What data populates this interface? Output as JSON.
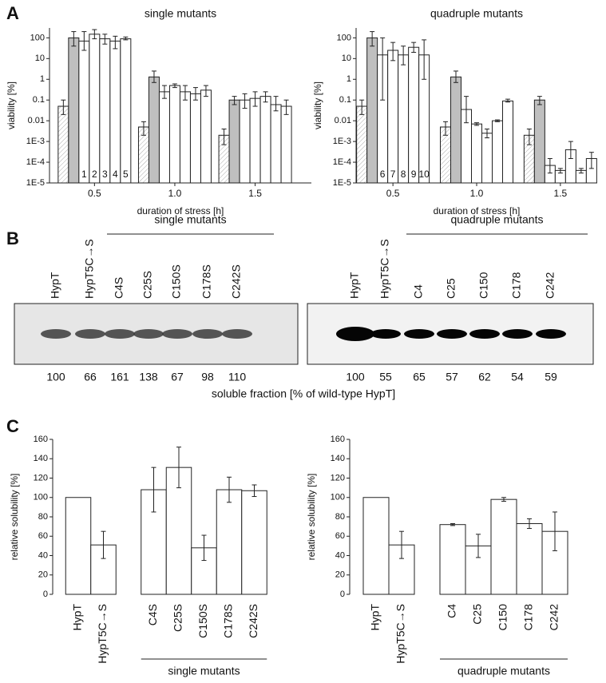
{
  "panel_labels": [
    "A",
    "B",
    "C"
  ],
  "chart_data": [
    {
      "type": "bar",
      "title": "single mutants",
      "x_label": "duration of stress [h]",
      "y_label": "viability [%]",
      "log_scale": true,
      "x": [
        0.5,
        1,
        1.5
      ],
      "xlim": [
        0.22,
        1.85
      ],
      "xticks": [
        0.5,
        {
          "value": 1,
          "label": "1.0"
        },
        1.5
      ],
      "ylim": [
        1e-05,
        300
      ],
      "yticks": [
        {
          "value": 1e-05,
          "label": "1E-5"
        },
        {
          "value": 0.0001,
          "label": "1E-4"
        },
        {
          "value": 0.001,
          "label": "1E-3"
        },
        0.01,
        0.1,
        1,
        10,
        100
      ],
      "series": [
        {
          "color": "#ffffff",
          "hatch": true,
          "values": [
            0.05,
            0.005,
            0.002
          ],
          "error_ranges": [
            [
              0.02,
              0.1
            ],
            [
              0.002,
              0.009
            ],
            [
              0.0007,
              0.004
            ]
          ]
        },
        {
          "color": "#bfbfbf",
          "values": [
            100,
            1.3,
            0.1
          ],
          "error_ranges": [
            [
              40,
              200
            ],
            [
              0.7,
              2.5
            ],
            [
              0.06,
              0.15
            ]
          ]
        },
        {
          "name": "1",
          "color": "#ffffff",
          "values": [
            70,
            0.25,
            0.1
          ],
          "error_ranges": [
            [
              25,
              200
            ],
            [
              0.12,
              0.5
            ],
            [
              0.04,
              0.2
            ]
          ]
        },
        {
          "name": "2",
          "color": "#ffffff",
          "values": [
            150,
            0.5,
            0.12
          ],
          "error_ranges": [
            [
              90,
              250
            ],
            [
              0.4,
              0.6
            ],
            [
              0.05,
              0.25
            ]
          ]
        },
        {
          "name": "3",
          "color": "#ffffff",
          "values": [
            90,
            0.25,
            0.15
          ],
          "error_ranges": [
            [
              50,
              150
            ],
            [
              0.1,
              0.5
            ],
            [
              0.08,
              0.25
            ]
          ]
        },
        {
          "name": "4",
          "color": "#ffffff",
          "values": [
            70,
            0.2,
            0.06
          ],
          "error_ranges": [
            [
              30,
              120
            ],
            [
              0.1,
              0.4
            ],
            [
              0.03,
              0.15
            ]
          ]
        },
        {
          "name": "5",
          "color": "#ffffff",
          "values": [
            90,
            0.3,
            0.05
          ],
          "error_ranges": [
            [
              80,
              110
            ],
            [
              0.15,
              0.5
            ],
            [
              0.02,
              0.1
            ]
          ]
        }
      ]
    },
    {
      "type": "bar",
      "title": "quadruple mutants",
      "x_label": "duration of stress [h]",
      "y_label": "viability [%]",
      "log_scale": true,
      "x": [
        0.5,
        1,
        1.5
      ],
      "xlim": [
        0.28,
        1.72
      ],
      "xticks": [
        0.5,
        {
          "value": 1,
          "label": "1.0"
        },
        1.5
      ],
      "ylim": [
        1e-05,
        300
      ],
      "yticks": [
        {
          "value": 1e-05,
          "label": "1E-5"
        },
        {
          "value": 0.0001,
          "label": "1E-4"
        },
        {
          "value": 0.001,
          "label": "1E-3"
        },
        0.01,
        0.1,
        1,
        10,
        100
      ],
      "series": [
        {
          "color": "#ffffff",
          "hatch": true,
          "values": [
            0.05,
            0.005,
            0.002
          ],
          "error_ranges": [
            [
              0.02,
              0.1
            ],
            [
              0.002,
              0.009
            ],
            [
              0.0007,
              0.004
            ]
          ]
        },
        {
          "color": "#bfbfbf",
          "values": [
            100,
            1.3,
            0.1
          ],
          "error_ranges": [
            [
              40,
              200
            ],
            [
              0.7,
              2.5
            ],
            [
              0.06,
              0.15
            ]
          ]
        },
        {
          "name": "6",
          "color": "#ffffff",
          "values": [
            15,
            0.035,
            7e-05
          ],
          "error_ranges": [
            [
              0.1,
              100
            ],
            [
              0.008,
              0.15
            ],
            [
              3e-05,
              0.00015
            ]
          ]
        },
        {
          "name": "7",
          "color": "#ffffff",
          "values": [
            25,
            0.007,
            4e-05
          ],
          "error_ranges": [
            [
              8,
              60
            ],
            [
              0.006,
              0.008
            ],
            [
              3e-05,
              5e-05
            ]
          ]
        },
        {
          "name": "8",
          "color": "#ffffff",
          "values": [
            15,
            0.0025,
            0.0004
          ],
          "error_ranges": [
            [
              5,
              40
            ],
            [
              0.0015,
              0.004
            ],
            [
              0.00015,
              0.001
            ]
          ]
        },
        {
          "name": "9",
          "color": "#ffffff",
          "values": [
            35,
            0.01,
            4e-05
          ],
          "error_ranges": [
            [
              20,
              60
            ],
            [
              0.009,
              0.011
            ],
            [
              3e-05,
              5e-05
            ]
          ]
        },
        {
          "name": "10",
          "color": "#ffffff",
          "values": [
            15,
            0.09,
            0.00015
          ],
          "error_ranges": [
            [
              1,
              80
            ],
            [
              0.08,
              0.11
            ],
            [
              5e-05,
              0.0003
            ]
          ]
        }
      ]
    },
    {
      "type": "bar",
      "y_label": "relative solubility [%]",
      "color": "#ffffff",
      "categories": [
        "HypT",
        "HypT5C→S",
        null,
        "C4S",
        "C25S",
        "C150S",
        "C178S",
        "C242S"
      ],
      "values": [
        100,
        51,
        null,
        108,
        131,
        48,
        108,
        107
      ],
      "errors": [
        null,
        14,
        null,
        23,
        21,
        13,
        13,
        6
      ],
      "group_label": "single mutants",
      "ylim": [
        0,
        160
      ],
      "yticks": [
        0,
        20,
        40,
        60,
        80,
        100,
        120,
        140,
        160
      ]
    },
    {
      "type": "bar",
      "y_label": "relative solubility [%]",
      "color": "#ffffff",
      "categories": [
        "HypT",
        "HypT5C→S",
        null,
        "C4",
        "C25",
        "C150",
        "C178",
        "C242"
      ],
      "values": [
        100,
        51,
        null,
        72,
        50,
        98,
        73,
        65
      ],
      "errors": [
        null,
        14,
        null,
        1,
        12,
        2,
        5,
        20
      ],
      "group_label": "quadruple mutants",
      "ylim": [
        0,
        160
      ],
      "yticks": [
        0,
        20,
        40,
        60,
        80,
        100,
        120,
        140,
        160
      ]
    }
  ],
  "blots": [
    {
      "title": "single mutants",
      "lanes": [
        "HypT",
        "HypT5C→S",
        "C4S",
        "C25S",
        "C150S",
        "C178S",
        "C242S"
      ],
      "values": [
        100,
        66,
        161,
        138,
        67,
        98,
        110
      ]
    },
    {
      "title": "quadruple mutants",
      "lanes": [
        "HypT",
        "HypT5C→S",
        "C4",
        "C25",
        "C150",
        "C178",
        "C242"
      ],
      "values": [
        100,
        55,
        65,
        57,
        62,
        54,
        59
      ]
    }
  ],
  "blot_caption": "soluble fraction [% of wild-type HypT]"
}
